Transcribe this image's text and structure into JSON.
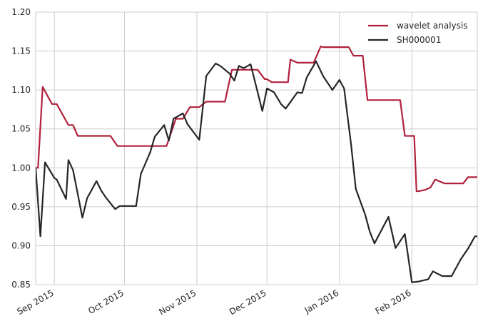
{
  "chart_data": {
    "type": "line",
    "title": "",
    "xlabel": "",
    "ylabel": "",
    "ylim": [
      0.85,
      1.2
    ],
    "xlim": [
      "2015-08-24",
      "2016-02-29"
    ],
    "y_ticks": [
      0.85,
      0.9,
      0.95,
      1.0,
      1.05,
      1.1,
      1.15,
      1.2
    ],
    "y_tick_labels": [
      "0.85",
      "0.90",
      "0.95",
      "1.00",
      "1.05",
      "1.10",
      "1.15",
      "1.20"
    ],
    "x_ticks": [
      "2015-09-01",
      "2015-10-01",
      "2015-11-01",
      "2015-12-01",
      "2016-01-01",
      "2016-02-01"
    ],
    "x_tick_labels": [
      "Sep 2015",
      "Oct 2015",
      "Nov 2015",
      "Dec 2015",
      "Jan 2016",
      "Feb 2016"
    ],
    "grid": true,
    "legend_position": "top-right",
    "series": [
      {
        "name": "wavelet analysis",
        "color": "#b0213b",
        "points": [
          [
            "2015-08-24",
            1.0
          ],
          [
            "2015-08-25",
            1.0
          ],
          [
            "2015-08-27",
            1.104
          ],
          [
            "2015-08-31",
            1.082
          ],
          [
            "2015-09-02",
            1.082
          ],
          [
            "2015-09-07",
            1.055
          ],
          [
            "2015-09-09",
            1.055
          ],
          [
            "2015-09-11",
            1.041
          ],
          [
            "2015-09-14",
            1.041
          ],
          [
            "2015-09-25",
            1.041
          ],
          [
            "2015-09-28",
            1.028
          ],
          [
            "2015-10-19",
            1.028
          ],
          [
            "2015-10-23",
            1.063
          ],
          [
            "2015-10-26",
            1.063
          ],
          [
            "2015-10-29",
            1.078
          ],
          [
            "2015-11-02",
            1.078
          ],
          [
            "2015-11-05",
            1.085
          ],
          [
            "2015-11-13",
            1.085
          ],
          [
            "2015-11-16",
            1.126
          ],
          [
            "2015-11-27",
            1.126
          ],
          [
            "2015-11-30",
            1.114
          ],
          [
            "2015-12-01",
            1.114
          ],
          [
            "2015-12-03",
            1.11
          ],
          [
            "2015-12-10",
            1.11
          ],
          [
            "2015-12-11",
            1.139
          ],
          [
            "2015-12-14",
            1.135
          ],
          [
            "2015-12-21",
            1.135
          ],
          [
            "2015-12-24",
            1.156
          ],
          [
            "2015-12-25",
            1.155
          ],
          [
            "2016-01-05",
            1.155
          ],
          [
            "2016-01-07",
            1.144
          ],
          [
            "2016-01-11",
            1.144
          ],
          [
            "2016-01-13",
            1.087
          ],
          [
            "2016-01-27",
            1.087
          ],
          [
            "2016-01-29",
            1.041
          ],
          [
            "2016-02-02",
            1.041
          ],
          [
            "2016-02-03",
            0.97
          ],
          [
            "2016-02-04",
            0.97
          ],
          [
            "2016-02-07",
            0.972
          ],
          [
            "2016-02-09",
            0.975
          ],
          [
            "2016-02-11",
            0.985
          ],
          [
            "2016-02-15",
            0.98
          ],
          [
            "2016-02-23",
            0.98
          ],
          [
            "2016-02-25",
            0.988
          ],
          [
            "2016-02-29",
            0.988
          ],
          [
            "2016-03-01",
            0.989
          ]
        ]
      },
      {
        "name": "SH000001",
        "color": "#262626",
        "points": [
          [
            "2015-08-24",
            1.0
          ],
          [
            "2015-08-26",
            0.912
          ],
          [
            "2015-08-28",
            1.007
          ],
          [
            "2015-09-01",
            0.987
          ],
          [
            "2015-09-02",
            0.985
          ],
          [
            "2015-09-06",
            0.96
          ],
          [
            "2015-09-07",
            1.01
          ],
          [
            "2015-09-09",
            0.997
          ],
          [
            "2015-09-13",
            0.936
          ],
          [
            "2015-09-15",
            0.961
          ],
          [
            "2015-09-19",
            0.983
          ],
          [
            "2015-09-21",
            0.971
          ],
          [
            "2015-09-23",
            0.962
          ],
          [
            "2015-09-27",
            0.947
          ],
          [
            "2015-09-29",
            0.951
          ],
          [
            "2015-10-06",
            0.951
          ],
          [
            "2015-10-08",
            0.992
          ],
          [
            "2015-10-12",
            1.02
          ],
          [
            "2015-10-14",
            1.04
          ],
          [
            "2015-10-18",
            1.055
          ],
          [
            "2015-10-20",
            1.035
          ],
          [
            "2015-10-22",
            1.063
          ],
          [
            "2015-10-26",
            1.07
          ],
          [
            "2015-10-28",
            1.056
          ],
          [
            "2015-11-02",
            1.036
          ],
          [
            "2015-11-05",
            1.118
          ],
          [
            "2015-11-09",
            1.134
          ],
          [
            "2015-11-11",
            1.131
          ],
          [
            "2015-11-15",
            1.121
          ],
          [
            "2015-11-17",
            1.112
          ],
          [
            "2015-11-19",
            1.131
          ],
          [
            "2015-11-21",
            1.128
          ],
          [
            "2015-11-24",
            1.133
          ],
          [
            "2015-11-29",
            1.073
          ],
          [
            "2015-12-01",
            1.102
          ],
          [
            "2015-12-04",
            1.097
          ],
          [
            "2015-12-07",
            1.082
          ],
          [
            "2015-12-09",
            1.076
          ],
          [
            "2015-12-14",
            1.097
          ],
          [
            "2015-12-16",
            1.096
          ],
          [
            "2015-12-18",
            1.116
          ],
          [
            "2015-12-22",
            1.137
          ],
          [
            "2015-12-25",
            1.118
          ],
          [
            "2015-12-29",
            1.1
          ],
          [
            "2016-01-01",
            1.113
          ],
          [
            "2016-01-03",
            1.102
          ],
          [
            "2016-01-06",
            1.03
          ],
          [
            "2016-01-08",
            0.973
          ],
          [
            "2016-01-12",
            0.94
          ],
          [
            "2016-01-14",
            0.918
          ],
          [
            "2016-01-16",
            0.903
          ],
          [
            "2016-01-22",
            0.937
          ],
          [
            "2016-01-25",
            0.897
          ],
          [
            "2016-01-29",
            0.915
          ],
          [
            "2016-02-01",
            0.853
          ],
          [
            "2016-02-04",
            0.854
          ],
          [
            "2016-02-08",
            0.857
          ],
          [
            "2016-02-10",
            0.867
          ],
          [
            "2016-02-14",
            0.861
          ],
          [
            "2016-02-18",
            0.861
          ],
          [
            "2016-02-22",
            0.883
          ],
          [
            "2016-02-25",
            0.896
          ],
          [
            "2016-02-28",
            0.912
          ],
          [
            "2016-03-01",
            0.912
          ]
        ]
      }
    ]
  }
}
